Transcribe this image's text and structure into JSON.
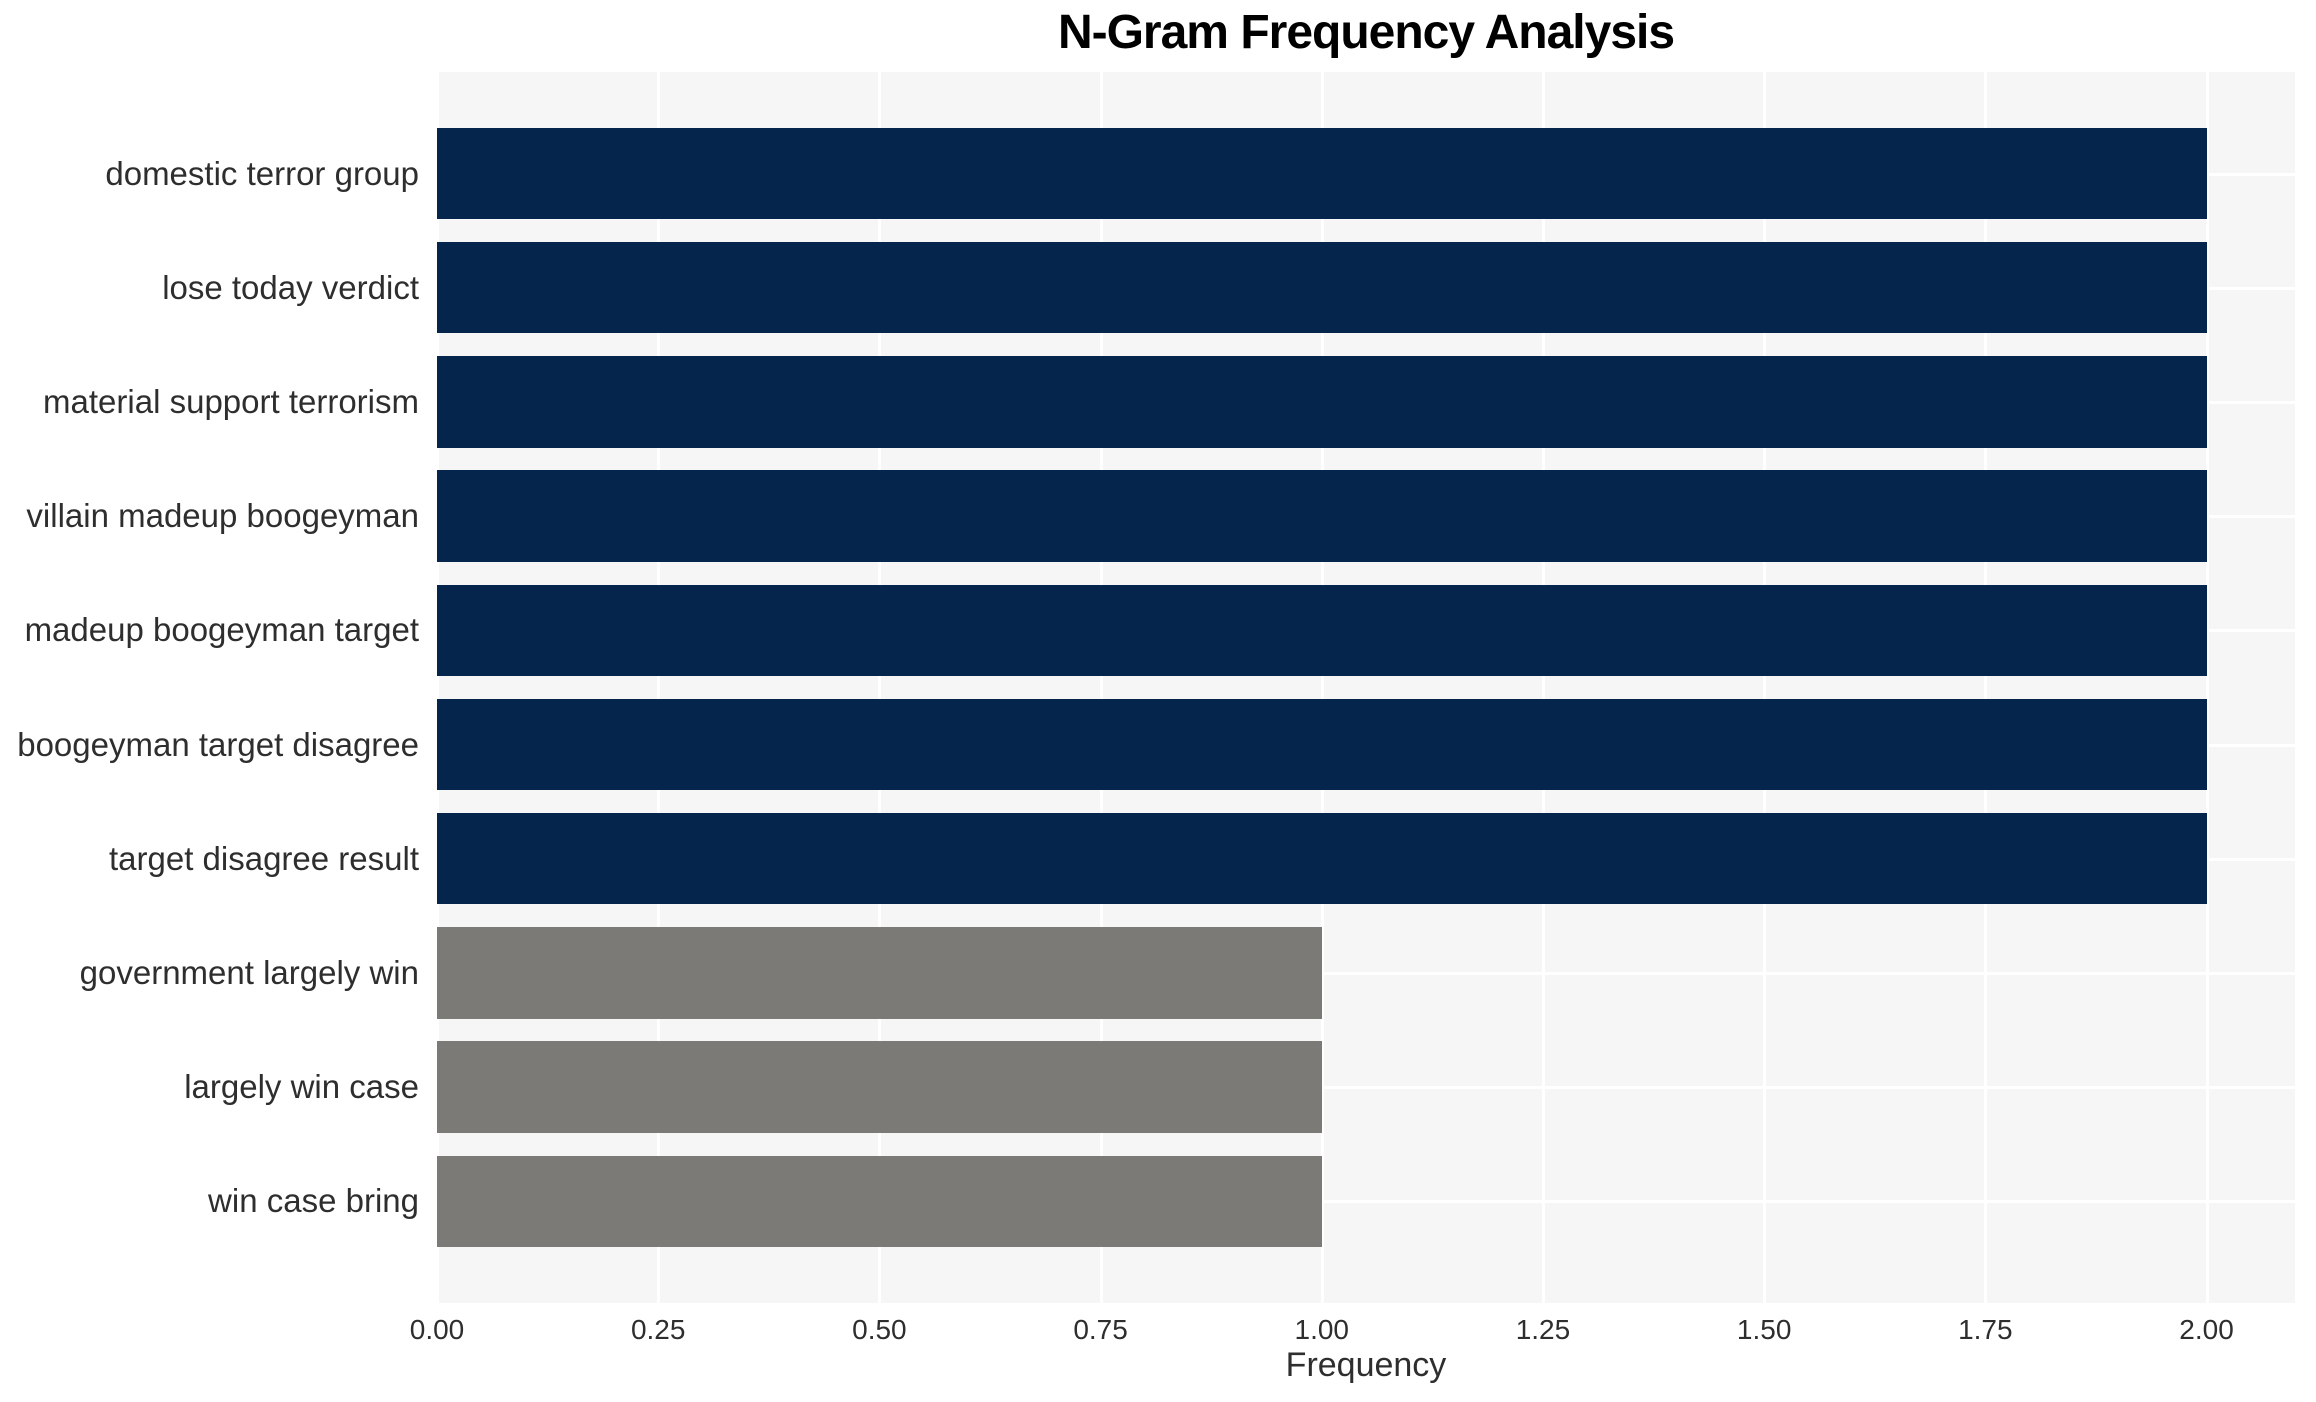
{
  "chart_data": {
    "type": "bar",
    "orientation": "horizontal",
    "title": "N-Gram Frequency Analysis",
    "xlabel": "Frequency",
    "ylabel": "",
    "categories": [
      "domestic terror group",
      "lose today verdict",
      "material support terrorism",
      "villain madeup boogeyman",
      "madeup boogeyman target",
      "boogeyman target disagree",
      "target disagree result",
      "government largely win",
      "largely win case",
      "win case bring"
    ],
    "values": [
      2,
      2,
      2,
      2,
      2,
      2,
      2,
      1,
      1,
      1
    ],
    "bar_colors": [
      "#06254d",
      "#06254d",
      "#06254d",
      "#06254d",
      "#06254d",
      "#06254d",
      "#06254d",
      "#7b7a76",
      "#7b7a76",
      "#7b7a76"
    ],
    "xlim": [
      0,
      2.1
    ],
    "xticks": [
      {
        "value": 0.0,
        "label": "0.00"
      },
      {
        "value": 0.25,
        "label": "0.25"
      },
      {
        "value": 0.5,
        "label": "0.50"
      },
      {
        "value": 0.75,
        "label": "0.75"
      },
      {
        "value": 1.0,
        "label": "1.00"
      },
      {
        "value": 1.25,
        "label": "1.25"
      },
      {
        "value": 1.5,
        "label": "1.50"
      },
      {
        "value": 1.75,
        "label": "1.75"
      },
      {
        "value": 2.0,
        "label": "2.00"
      }
    ],
    "grid": true,
    "legend_position": "none",
    "colors": {
      "plot_background": "#f6f6f6",
      "grid": "#ffffff",
      "tick_text": "#2e2e2e",
      "label_text": "#2e2e2e",
      "title_text": "#000000"
    }
  }
}
